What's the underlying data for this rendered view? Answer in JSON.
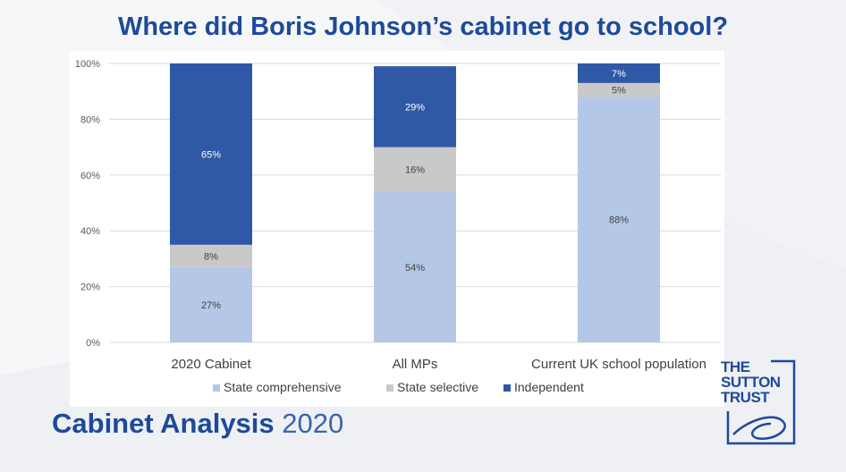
{
  "title": "Where did Boris Johnson’s cabinet go to school?",
  "footer": {
    "bold": "Cabinet Analysis",
    "light": "2020"
  },
  "logo": {
    "line1": "THE",
    "line2": "SUTTON",
    "line3": "TRUST"
  },
  "colors": {
    "state_comprehensive": "#b4c7e7",
    "state_selective": "#c9c9c9",
    "independent": "#2f58a6",
    "brand": "#1d4a9a",
    "axis_text": "#595959",
    "grid": "#d9d9d9"
  },
  "chart_data": {
    "type": "bar",
    "stacked": true,
    "title": "",
    "xlabel": "",
    "ylabel": "",
    "ylim": [
      0,
      100
    ],
    "y_ticks": [
      0,
      20,
      40,
      60,
      80,
      100
    ],
    "y_tick_labels": [
      "0%",
      "20%",
      "40%",
      "60%",
      "80%",
      "100%"
    ],
    "grid": true,
    "legend_position": "bottom",
    "categories": [
      "2020 Cabinet",
      "All MPs",
      "Current UK school population"
    ],
    "series": [
      {
        "name": "State comprehensive",
        "values": [
          27,
          54,
          88
        ],
        "labels": [
          "27%",
          "54%",
          "88%"
        ]
      },
      {
        "name": "State selective",
        "values": [
          8,
          16,
          5
        ],
        "labels": [
          "8%",
          "16%",
          "5%"
        ]
      },
      {
        "name": "Independent",
        "values": [
          65,
          29,
          7
        ],
        "labels": [
          "65%",
          "29%",
          "7%"
        ]
      }
    ]
  }
}
